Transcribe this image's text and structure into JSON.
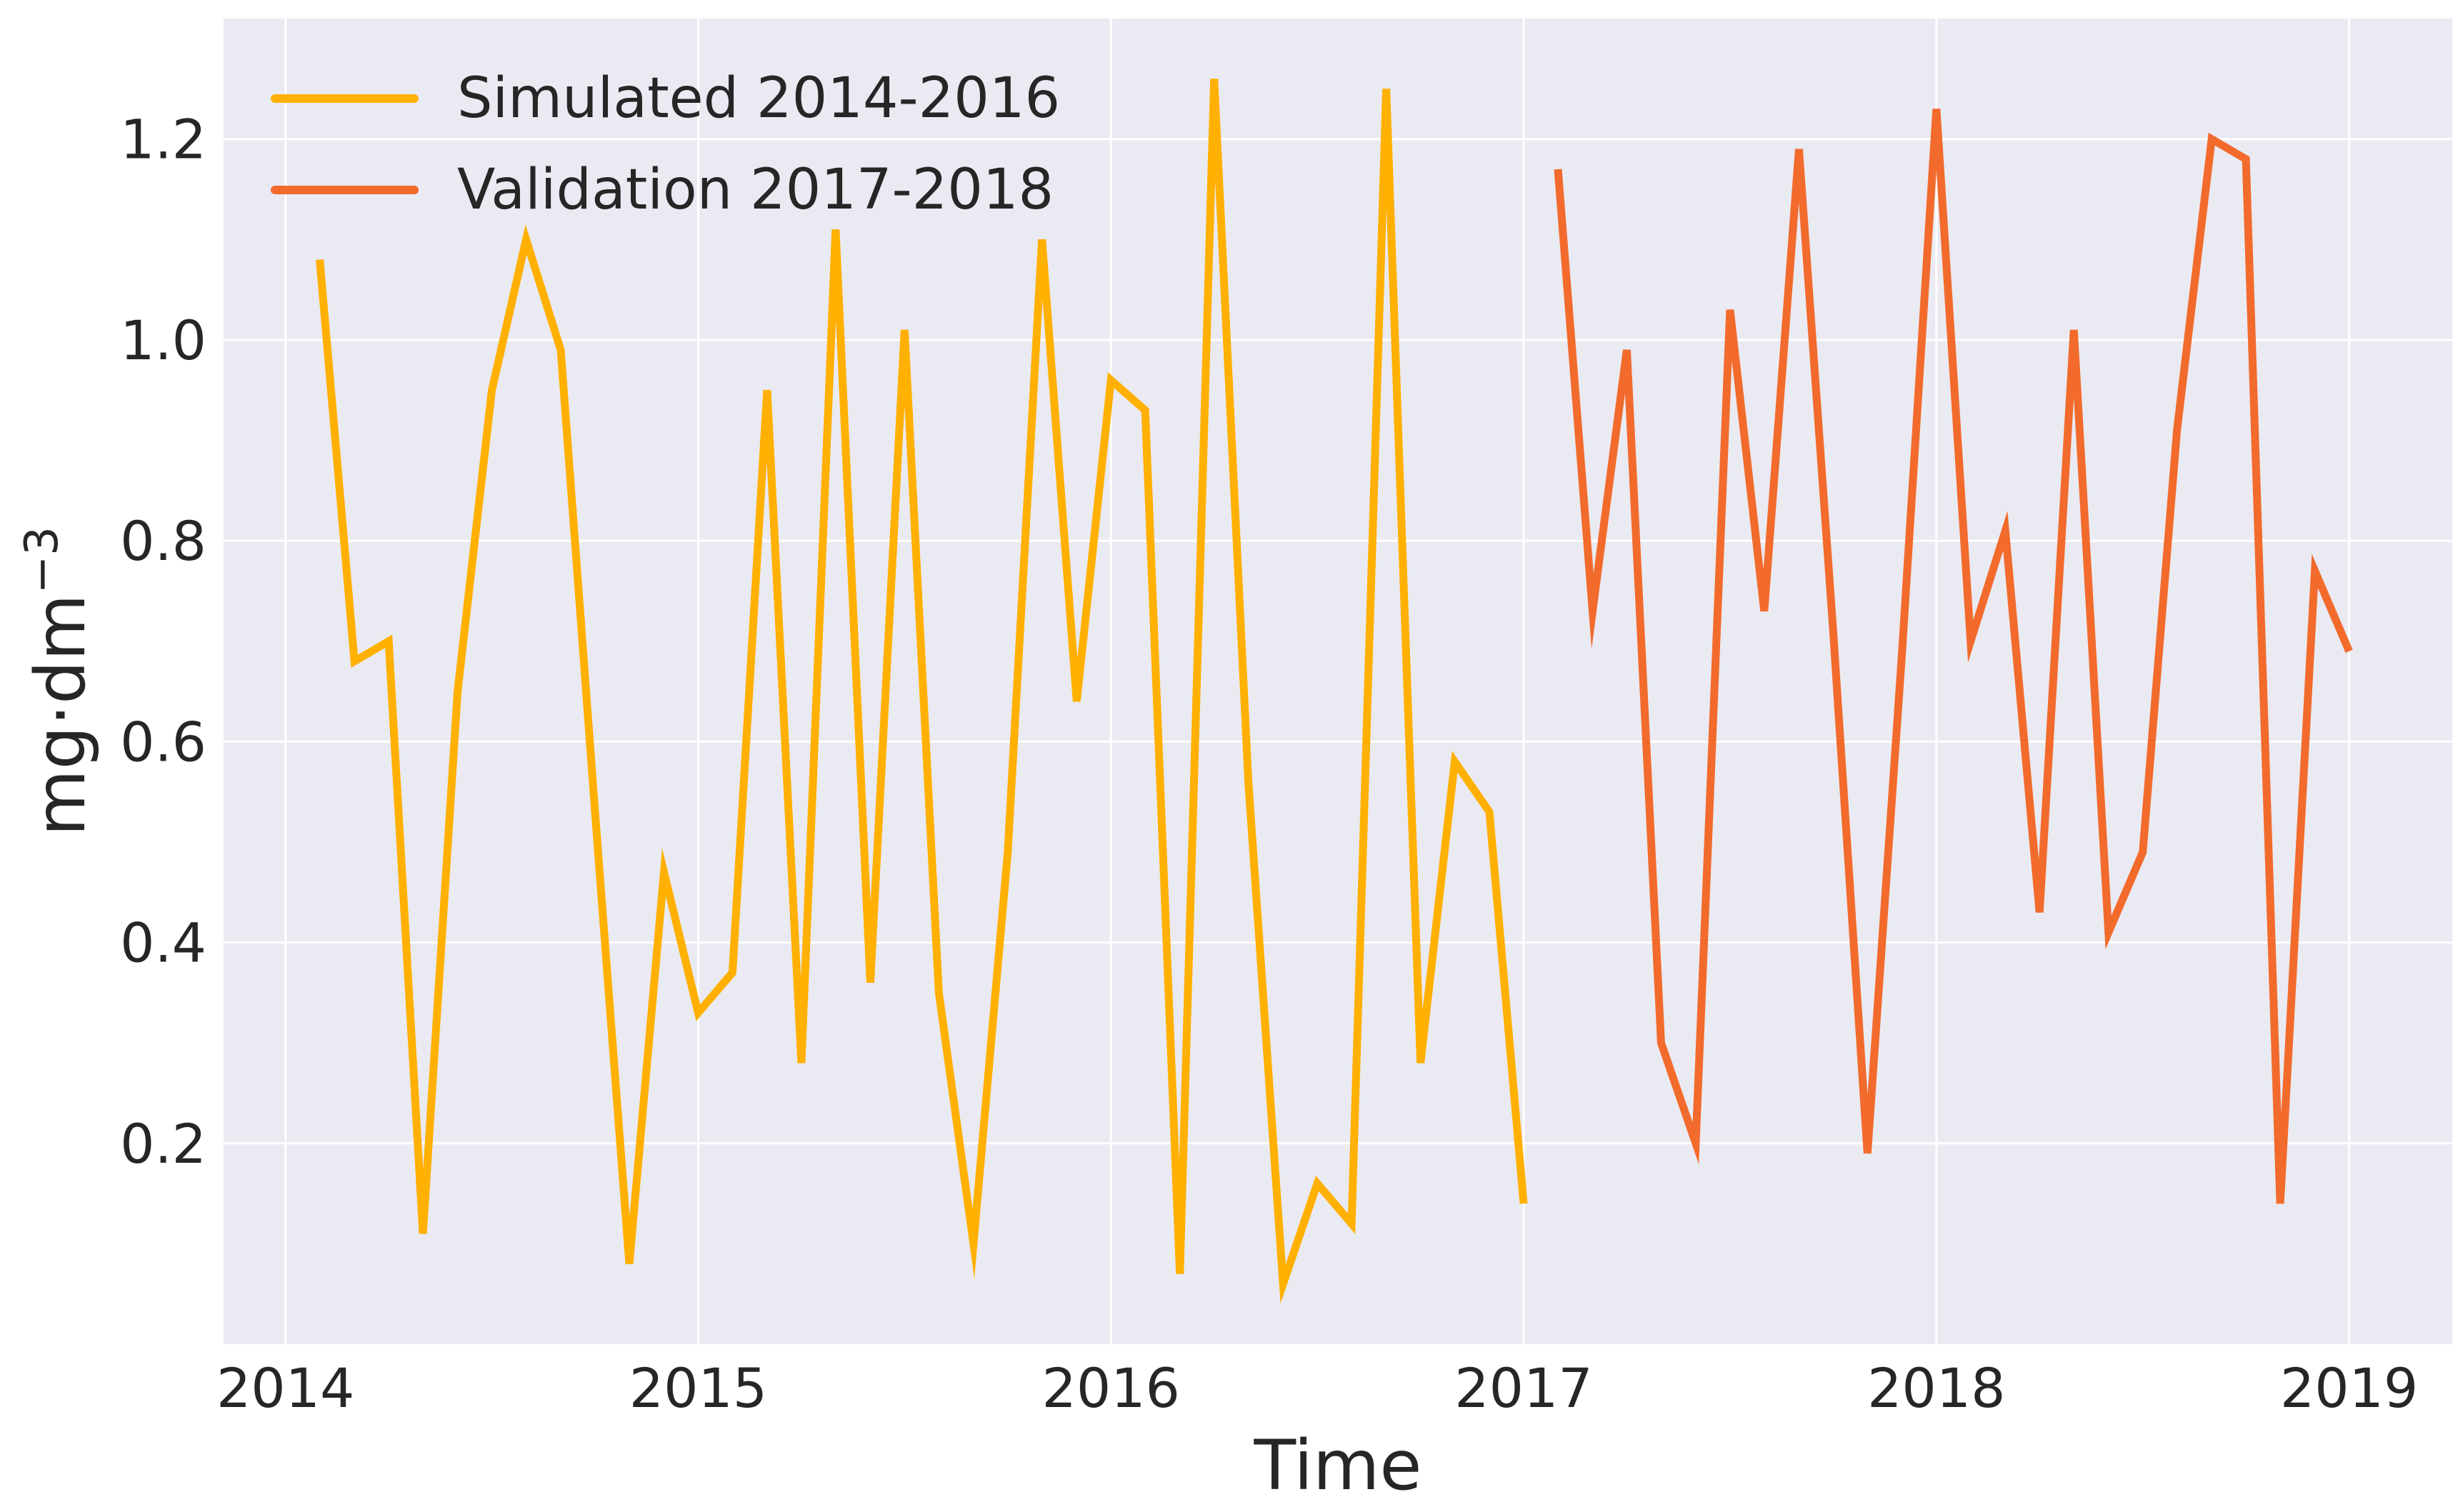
{
  "chart_data": {
    "type": "line",
    "title": "",
    "xlabel": "Time",
    "ylabel": "mg·dm",
    "ylabel_superscript": "−3",
    "xlim": [
      2013.85,
      2019.25
    ],
    "ylim": [
      0.0,
      1.32
    ],
    "x_ticks": [
      2014,
      2015,
      2016,
      2017,
      2018,
      2019
    ],
    "x_tick_labels": [
      "2014",
      "2015",
      "2016",
      "2017",
      "2018",
      "2019"
    ],
    "y_ticks": [
      0.2,
      0.4,
      0.6,
      0.8,
      1.0,
      1.2
    ],
    "y_tick_labels": [
      "0.2",
      "0.4",
      "0.6",
      "0.8",
      "1.0",
      "1.2"
    ],
    "grid": true,
    "legend_position": "top-left",
    "background_color": "#eaeaf2",
    "series": [
      {
        "name": "Simulated 2014-2016",
        "color": "#ffb000",
        "points": [
          [
            2014.083,
            1.08
          ],
          [
            2014.167,
            0.68
          ],
          [
            2014.25,
            0.7
          ],
          [
            2014.333,
            0.11
          ],
          [
            2014.417,
            0.65
          ],
          [
            2014.5,
            0.95
          ],
          [
            2014.583,
            1.1
          ],
          [
            2014.667,
            0.99
          ],
          [
            2014.75,
            0.53
          ],
          [
            2014.833,
            0.08
          ],
          [
            2014.917,
            0.47
          ],
          [
            2015.0,
            0.33
          ],
          [
            2015.083,
            0.37
          ],
          [
            2015.167,
            0.95
          ],
          [
            2015.25,
            0.28
          ],
          [
            2015.333,
            1.11
          ],
          [
            2015.417,
            0.36
          ],
          [
            2015.5,
            1.01
          ],
          [
            2015.583,
            0.35
          ],
          [
            2015.667,
            0.1
          ],
          [
            2015.75,
            0.49
          ],
          [
            2015.833,
            1.1
          ],
          [
            2015.917,
            0.64
          ],
          [
            2016.0,
            0.96
          ],
          [
            2016.083,
            0.93
          ],
          [
            2016.167,
            0.07
          ],
          [
            2016.25,
            1.26
          ],
          [
            2016.333,
            0.56
          ],
          [
            2016.417,
            0.06
          ],
          [
            2016.5,
            0.16
          ],
          [
            2016.583,
            0.12
          ],
          [
            2016.667,
            1.25
          ],
          [
            2016.75,
            0.28
          ],
          [
            2016.833,
            0.58
          ],
          [
            2016.917,
            0.53
          ],
          [
            2017.0,
            0.14
          ]
        ]
      },
      {
        "name": "Validation 2017-2018",
        "color": "#f26b2c",
        "points": [
          [
            2017.083,
            1.17
          ],
          [
            2017.167,
            0.73
          ],
          [
            2017.25,
            0.99
          ],
          [
            2017.333,
            0.3
          ],
          [
            2017.417,
            0.2
          ],
          [
            2017.5,
            1.03
          ],
          [
            2017.583,
            0.73
          ],
          [
            2017.667,
            1.19
          ],
          [
            2017.75,
            0.71
          ],
          [
            2017.833,
            0.19
          ],
          [
            2017.917,
            0.69
          ],
          [
            2018.0,
            1.23
          ],
          [
            2018.083,
            0.7
          ],
          [
            2018.167,
            0.81
          ],
          [
            2018.25,
            0.43
          ],
          [
            2018.333,
            1.01
          ],
          [
            2018.417,
            0.41
          ],
          [
            2018.5,
            0.49
          ],
          [
            2018.583,
            0.91
          ],
          [
            2018.667,
            1.2
          ],
          [
            2018.75,
            1.18
          ],
          [
            2018.833,
            0.14
          ],
          [
            2018.917,
            0.77
          ],
          [
            2019.0,
            0.69
          ]
        ]
      }
    ]
  }
}
